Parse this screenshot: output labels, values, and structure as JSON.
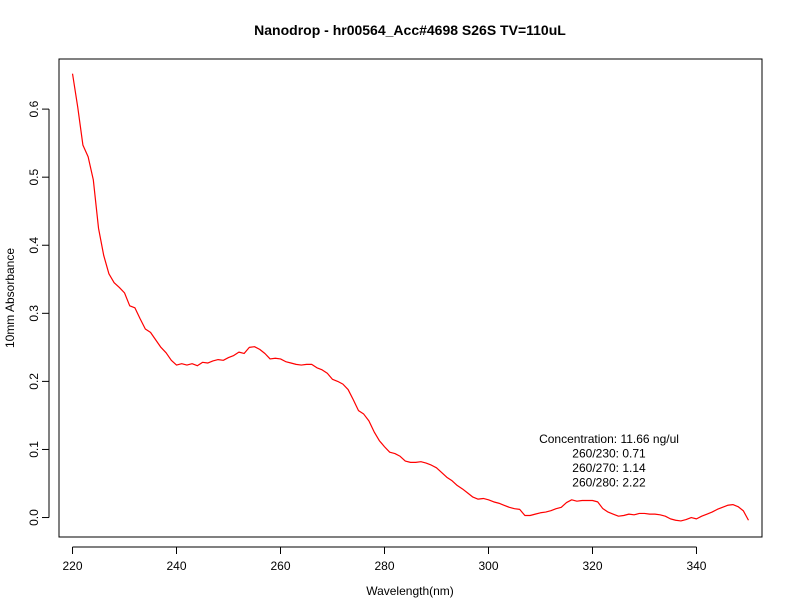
{
  "chart_data": {
    "type": "line",
    "title": "Nanodrop - hr00564_Acc#4698  S26S  TV=110uL",
    "xlabel": "Wavelength(nm)",
    "ylabel": "10mm Absorbance",
    "xlim": [
      217.4,
      352.6
    ],
    "ylim": [
      -0.0286,
      0.6736
    ],
    "x_ticks": [
      220,
      240,
      260,
      280,
      300,
      320,
      340
    ],
    "x_tick_labels": [
      "220",
      "240",
      "260",
      "280",
      "300",
      "320",
      "340"
    ],
    "y_ticks": [
      0.0,
      0.1,
      0.2,
      0.3,
      0.4,
      0.5,
      0.6
    ],
    "y_tick_labels": [
      "0.0",
      "0.1",
      "0.2",
      "0.3",
      "0.4",
      "0.5",
      "0.6"
    ],
    "grid": false,
    "series": [
      {
        "color": "#ff0000",
        "x": [
          220,
          221,
          222,
          223,
          224,
          225,
          226,
          227,
          228,
          229,
          230,
          231,
          232,
          233,
          234,
          235,
          236,
          237,
          238,
          239,
          240,
          241,
          242,
          243,
          244,
          245,
          246,
          247,
          248,
          249,
          250,
          251,
          252,
          253,
          254,
          255,
          256,
          257,
          258,
          259,
          260,
          261,
          262,
          263,
          264,
          265,
          266,
          267,
          268,
          269,
          270,
          271,
          272,
          273,
          274,
          275,
          276,
          277,
          278,
          279,
          280,
          281,
          282,
          283,
          284,
          285,
          286,
          287,
          288,
          289,
          290,
          291,
          292,
          293,
          294,
          295,
          296,
          297,
          298,
          299,
          300,
          301,
          302,
          303,
          304,
          305,
          306,
          307,
          308,
          309,
          310,
          311,
          312,
          313,
          314,
          315,
          316,
          317,
          318,
          319,
          320,
          321,
          322,
          323,
          324,
          325,
          326,
          327,
          328,
          329,
          330,
          331,
          332,
          333,
          334,
          335,
          336,
          337,
          338,
          339,
          340,
          341,
          342,
          343,
          344,
          345,
          346,
          347,
          348,
          349,
          350
        ],
        "y": [
          0.652,
          0.603,
          0.547,
          0.53,
          0.496,
          0.425,
          0.385,
          0.358,
          0.345,
          0.338,
          0.33,
          0.311,
          0.308,
          0.292,
          0.277,
          0.272,
          0.261,
          0.25,
          0.242,
          0.231,
          0.224,
          0.226,
          0.224,
          0.226,
          0.223,
          0.228,
          0.227,
          0.23,
          0.232,
          0.231,
          0.235,
          0.238,
          0.243,
          0.241,
          0.25,
          0.251,
          0.247,
          0.241,
          0.233,
          0.234,
          0.233,
          0.229,
          0.227,
          0.225,
          0.224,
          0.225,
          0.225,
          0.22,
          0.217,
          0.212,
          0.203,
          0.2,
          0.196,
          0.188,
          0.173,
          0.157,
          0.152,
          0.142,
          0.126,
          0.113,
          0.104,
          0.096,
          0.094,
          0.09,
          0.083,
          0.081,
          0.081,
          0.082,
          0.08,
          0.077,
          0.073,
          0.066,
          0.059,
          0.054,
          0.047,
          0.042,
          0.036,
          0.03,
          0.027,
          0.028,
          0.026,
          0.023,
          0.021,
          0.018,
          0.015,
          0.013,
          0.012,
          0.003,
          0.003,
          0.005,
          0.007,
          0.008,
          0.01,
          0.013,
          0.015,
          0.022,
          0.026,
          0.024,
          0.025,
          0.025,
          0.025,
          0.023,
          0.013,
          0.008,
          0.005,
          0.002,
          0.003,
          0.005,
          0.004,
          0.006,
          0.006,
          0.005,
          0.005,
          0.004,
          0.002,
          -0.002,
          -0.004,
          -0.005,
          -0.003,
          0.0,
          -0.002,
          0.002,
          0.005,
          0.008,
          0.012,
          0.015,
          0.018,
          0.019,
          0.016,
          0.01,
          -0.004
        ]
      }
    ],
    "annotations": [
      "Concentration: 11.66 ng/ul",
      "260/230: 0.71",
      "260/270: 1.14",
      "260/280: 2.22"
    ]
  }
}
